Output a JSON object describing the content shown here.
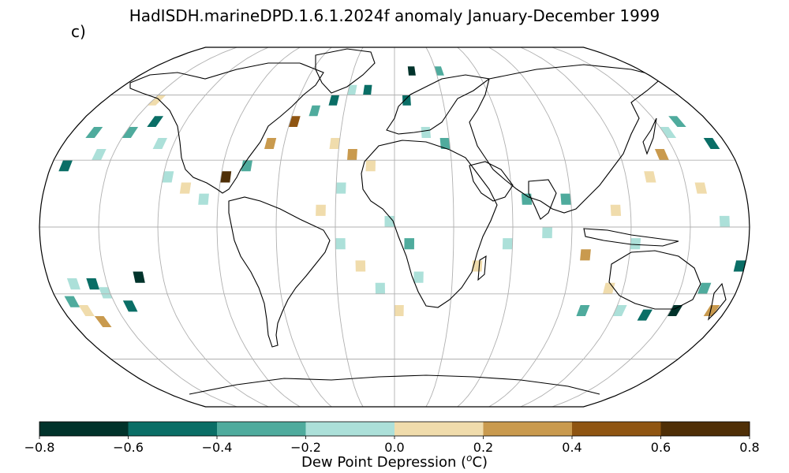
{
  "title": "HadISDH.marineDPD.1.6.1.2024f anomaly January-December 1999",
  "panel_label": "c)",
  "colorbar": {
    "label_prefix": "Dew Point Depression (",
    "label_sup": "o",
    "label_suffix": "C)",
    "ticks": [
      "−0.8",
      "−0.6",
      "−0.4",
      "−0.2",
      "0.0",
      "0.2",
      "0.4",
      "0.6",
      "0.8"
    ],
    "colors": [
      "#01332b",
      "#0a6e66",
      "#4fab9d",
      "#ace0d9",
      "#f0dcac",
      "#c99a4e",
      "#8f5512",
      "#4f2f07"
    ]
  },
  "map_data": {
    "projection": "Robinson",
    "grid_spacing_deg": 30,
    "cells": [
      {
        "lon": -170,
        "lat": -28,
        "b": 3
      },
      {
        "lon": -160,
        "lat": -28,
        "b": 1
      },
      {
        "lon": -170,
        "lat": -40,
        "b": 4
      },
      {
        "lon": -165,
        "lat": -45,
        "b": 5
      },
      {
        "lon": -155,
        "lat": -32,
        "b": 3
      },
      {
        "lon": -145,
        "lat": -38,
        "b": 1
      },
      {
        "lon": -135,
        "lat": -25,
        "b": 0
      },
      {
        "lon": -175,
        "lat": -36,
        "b": 2
      },
      {
        "lon": -150,
        "lat": 40,
        "b": 2
      },
      {
        "lon": -140,
        "lat": 45,
        "b": 1
      },
      {
        "lon": -160,
        "lat": 30,
        "b": 3
      },
      {
        "lon": -130,
        "lat": 35,
        "b": 3
      },
      {
        "lon": -150,
        "lat": 55,
        "b": 4
      },
      {
        "lon": -170,
        "lat": 40,
        "b": 2
      },
      {
        "lon": -175,
        "lat": 25,
        "b": 1
      },
      {
        "lon": -120,
        "lat": 20,
        "b": 3
      },
      {
        "lon": -110,
        "lat": 15,
        "b": 4
      },
      {
        "lon": -100,
        "lat": 10,
        "b": 3
      },
      {
        "lon": -90,
        "lat": 20,
        "b": 7
      },
      {
        "lon": -80,
        "lat": 25,
        "b": 2
      },
      {
        "lon": -70,
        "lat": 35,
        "b": 5
      },
      {
        "lon": -60,
        "lat": 45,
        "b": 6
      },
      {
        "lon": -50,
        "lat": 50,
        "b": 2
      },
      {
        "lon": -40,
        "lat": 55,
        "b": 1
      },
      {
        "lon": -30,
        "lat": 60,
        "b": 3
      },
      {
        "lon": -20,
        "lat": 60,
        "b": 1
      },
      {
        "lon": -35,
        "lat": 35,
        "b": 4
      },
      {
        "lon": -25,
        "lat": 30,
        "b": 5
      },
      {
        "lon": -15,
        "lat": 25,
        "b": 4
      },
      {
        "lon": -30,
        "lat": 15,
        "b": 3
      },
      {
        "lon": -40,
        "lat": 5,
        "b": 4
      },
      {
        "lon": -30,
        "lat": -10,
        "b": 3
      },
      {
        "lon": -20,
        "lat": -20,
        "b": 4
      },
      {
        "lon": -10,
        "lat": -30,
        "b": 3
      },
      {
        "lon": 0,
        "lat": -40,
        "b": 4
      },
      {
        "lon": 10,
        "lat": -25,
        "b": 3
      },
      {
        "lon": 5,
        "lat": -10,
        "b": 2
      },
      {
        "lon": -5,
        "lat": 0,
        "b": 3
      },
      {
        "lon": 15,
        "lat": 40,
        "b": 3
      },
      {
        "lon": 25,
        "lat": 35,
        "b": 2
      },
      {
        "lon": 5,
        "lat": 55,
        "b": 1
      },
      {
        "lon": 10,
        "lat": 70,
        "b": 0
      },
      {
        "lon": 30,
        "lat": 70,
        "b": 2
      },
      {
        "lon": 40,
        "lat": -20,
        "b": 4
      },
      {
        "lon": 55,
        "lat": -10,
        "b": 3
      },
      {
        "lon": 65,
        "lat": 10,
        "b": 2
      },
      {
        "lon": 75,
        "lat": -5,
        "b": 3
      },
      {
        "lon": 85,
        "lat": 10,
        "b": 2
      },
      {
        "lon": 95,
        "lat": -15,
        "b": 5
      },
      {
        "lon": 110,
        "lat": 5,
        "b": 4
      },
      {
        "lon": 120,
        "lat": -10,
        "b": 3
      },
      {
        "lon": 130,
        "lat": 20,
        "b": 4
      },
      {
        "lon": 140,
        "lat": 30,
        "b": 5
      },
      {
        "lon": 150,
        "lat": 40,
        "b": 3
      },
      {
        "lon": 160,
        "lat": 45,
        "b": 2
      },
      {
        "lon": 170,
        "lat": 35,
        "b": 1
      },
      {
        "lon": 155,
        "lat": 15,
        "b": 4
      },
      {
        "lon": 165,
        "lat": 0,
        "b": 3
      },
      {
        "lon": 175,
        "lat": -20,
        "b": 1
      },
      {
        "lon": 160,
        "lat": -30,
        "b": 2
      },
      {
        "lon": 150,
        "lat": -40,
        "b": 0
      },
      {
        "lon": 135,
        "lat": -42,
        "b": 1
      },
      {
        "lon": 120,
        "lat": -40,
        "b": 3
      },
      {
        "lon": 170,
        "lat": -40,
        "b": 5
      },
      {
        "lon": 110,
        "lat": -30,
        "b": 4
      },
      {
        "lon": 100,
        "lat": -40,
        "b": 2
      }
    ]
  }
}
